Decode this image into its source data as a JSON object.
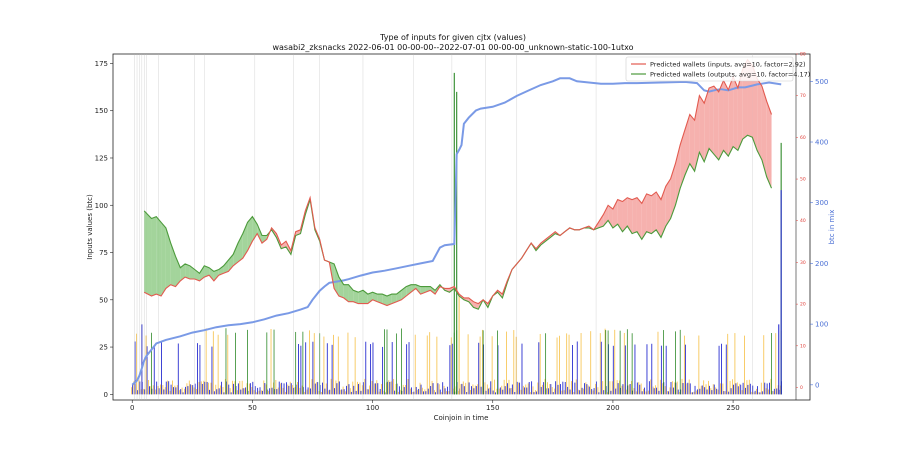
{
  "chart_data": {
    "type": "line",
    "title": "Type of inputs for given cjtx (values)",
    "subtitle": "wasabi2_zksnacks 2022-06-01 00-00-00--2022-07-01 00-00-00_unknown-static-100-1utxo",
    "xlabel": "Coinjoin in time",
    "ylabel": "Inputs values (btc)",
    "ylabel_right": "btc in mix",
    "xlim": [
      -8,
      282
    ],
    "ylim": [
      -3,
      180
    ],
    "xticks": [
      0,
      50,
      100,
      150,
      200,
      250
    ],
    "yticks": [
      0,
      25,
      50,
      75,
      100,
      125,
      150,
      175
    ],
    "y2lim": [
      -25,
      545
    ],
    "y2ticks": [
      0,
      100,
      200,
      300,
      400,
      500
    ],
    "y3lim": [
      -3,
      80
    ],
    "y3ticks": [
      0,
      10,
      20,
      30,
      40,
      50,
      60,
      70,
      80
    ],
    "grid": false,
    "legend_position": "top-right",
    "vertical_lines_x": [
      1,
      2,
      3,
      4,
      5,
      6,
      11,
      26,
      30,
      51,
      67,
      78,
      96,
      117,
      133,
      147,
      160,
      193,
      258
    ],
    "series": [
      {
        "name": "Predicted wallets (inputs, avg=10, factor=2.92)",
        "color": "#e25a4f",
        "x": [
          5,
          8,
          10,
          12,
          14,
          16,
          18,
          20,
          22,
          24,
          26,
          28,
          30,
          32,
          34,
          36,
          38,
          40,
          42,
          44,
          46,
          48,
          50,
          52,
          54,
          56,
          58,
          60,
          62,
          64,
          66,
          68,
          70,
          72,
          74,
          76,
          78,
          80,
          82,
          84,
          86,
          88,
          90,
          92,
          94,
          96,
          98,
          100,
          102,
          104,
          106,
          108,
          110,
          112,
          114,
          116,
          118,
          120,
          122,
          124,
          126,
          128,
          130,
          132,
          134,
          136,
          138,
          140,
          142,
          144,
          146,
          148,
          150,
          152,
          154,
          156,
          158,
          160,
          162,
          164,
          166,
          168,
          170,
          172,
          174,
          176,
          178,
          180,
          182,
          184,
          186,
          188,
          190,
          192,
          194,
          196,
          198,
          200,
          202,
          204,
          206,
          208,
          210,
          212,
          214,
          216,
          218,
          220,
          222,
          224,
          226,
          228,
          230,
          232,
          234,
          236,
          238,
          240,
          242,
          244,
          246,
          248,
          250,
          252,
          254,
          256,
          258,
          260,
          262,
          264,
          266
        ],
        "values": [
          54,
          52,
          53,
          52,
          56,
          58,
          57,
          60,
          62,
          61,
          61,
          60,
          62,
          63,
          60,
          63,
          64,
          65,
          68,
          70,
          72,
          76,
          81,
          85,
          80,
          82,
          88,
          85,
          79,
          81,
          76,
          86,
          87,
          97,
          104,
          88,
          82,
          71,
          70,
          56,
          52,
          51,
          49,
          49,
          48,
          48,
          48,
          50,
          49,
          48,
          47,
          48,
          49,
          50,
          52,
          54,
          56,
          53,
          54,
          55,
          53,
          57,
          56,
          56,
          57,
          53,
          51,
          51,
          49,
          48,
          50,
          48,
          52,
          55,
          53,
          60,
          66,
          69,
          72,
          76,
          80,
          77,
          80,
          82,
          84,
          86,
          84,
          86,
          88,
          87,
          87,
          88,
          89,
          87,
          91,
          95,
          100,
          98,
          103,
          102,
          104,
          103,
          104,
          101,
          106,
          105,
          107,
          103,
          110,
          114,
          122,
          132,
          140,
          148,
          145,
          158,
          154,
          162,
          163,
          160,
          166,
          161,
          168,
          162,
          172,
          177,
          174,
          167,
          163,
          155,
          148
        ]
      },
      {
        "name": "Predicted wallets (outputs, avg=10, factor=4.17)",
        "color": "#4c9a3b",
        "x": [
          5,
          8,
          10,
          12,
          14,
          16,
          18,
          20,
          22,
          24,
          26,
          28,
          30,
          32,
          34,
          36,
          38,
          40,
          42,
          44,
          46,
          48,
          50,
          52,
          54,
          56,
          58,
          60,
          62,
          64,
          66,
          68,
          70,
          72,
          74,
          76,
          78,
          80,
          82,
          84,
          86,
          88,
          90,
          92,
          94,
          96,
          98,
          100,
          102,
          104,
          106,
          108,
          110,
          112,
          114,
          116,
          118,
          120,
          122,
          124,
          126,
          128,
          130,
          132,
          134,
          136,
          138,
          140,
          142,
          144,
          146,
          148,
          150,
          152,
          154,
          156,
          158,
          160,
          162,
          164,
          166,
          168,
          170,
          172,
          174,
          176,
          178,
          180,
          182,
          184,
          186,
          188,
          190,
          192,
          194,
          196,
          198,
          200,
          202,
          204,
          206,
          208,
          210,
          212,
          214,
          216,
          218,
          220,
          222,
          224,
          226,
          228,
          230,
          232,
          234,
          236,
          238,
          240,
          242,
          244,
          246,
          248,
          250,
          252,
          254,
          256,
          258,
          260,
          262,
          264,
          266
        ],
        "values": [
          97,
          93,
          94,
          91,
          88,
          80,
          73,
          67,
          69,
          68,
          66,
          64,
          68,
          67,
          65,
          66,
          68,
          71,
          74,
          80,
          85,
          91,
          94,
          90,
          84,
          84,
          87,
          83,
          77,
          78,
          74,
          84,
          85,
          95,
          103,
          87,
          81,
          71,
          70,
          69,
          62,
          58,
          58,
          55,
          54,
          55,
          53,
          54,
          53,
          53,
          52,
          53,
          53,
          55,
          57,
          58,
          58,
          57,
          57,
          57,
          55,
          58,
          55,
          54,
          56,
          52,
          50,
          49,
          46,
          45,
          50,
          46,
          52,
          54,
          51,
          59,
          66,
          69,
          72,
          76,
          80,
          76,
          79,
          81,
          83,
          85,
          84,
          86,
          88,
          87,
          87,
          88,
          88,
          87,
          88,
          89,
          92,
          88,
          90,
          86,
          89,
          85,
          86,
          82,
          86,
          85,
          87,
          83,
          89,
          93,
          100,
          109,
          116,
          122,
          118,
          128,
          123,
          130,
          127,
          124,
          129,
          126,
          131,
          129,
          135,
          137,
          136,
          129,
          124,
          115,
          109
        ]
      },
      {
        "name": "btc in mix",
        "color": "#7a9ae6",
        "axis": "right",
        "x": [
          0,
          2,
          3,
          4,
          5,
          6,
          8,
          10,
          14,
          20,
          25,
          30,
          35,
          40,
          45,
          50,
          55,
          60,
          65,
          70,
          73,
          75,
          78,
          80,
          82,
          85,
          88,
          90,
          95,
          100,
          105,
          110,
          115,
          120,
          125,
          128,
          130,
          134,
          135,
          136,
          137,
          138,
          140,
          143,
          145,
          150,
          155,
          160,
          165,
          170,
          175,
          178,
          182,
          185,
          190,
          195,
          200,
          205,
          210,
          220,
          230,
          235,
          238,
          240,
          243,
          245,
          248,
          252,
          255,
          258,
          260,
          265,
          270
        ],
        "values": [
          0,
          7,
          15,
          27,
          40,
          48,
          58,
          68,
          74,
          80,
          86,
          90,
          95,
          98,
          100,
          103,
          108,
          114,
          118,
          124,
          128,
          140,
          155,
          162,
          168,
          170,
          172,
          174,
          180,
          185,
          188,
          192,
          196,
          200,
          204,
          226,
          230,
          232,
          380,
          387,
          395,
          430,
          440,
          452,
          455,
          458,
          465,
          476,
          485,
          494,
          500,
          505,
          505,
          500,
          498,
          496,
          496,
          497,
          497,
          498,
          499,
          497,
          485,
          483,
          486,
          487,
          485,
          490,
          490,
          493,
          495,
          498,
          495
        ]
      }
    ],
    "bars_note": "per-coinjoin input values (blue), output values (yellow), special outputs (green) near the x axis"
  },
  "legend": {
    "inputs_label": "Predicted wallets (inputs, avg=10, factor=2.92)",
    "outputs_label": "Predicted wallets (outputs, avg=10, factor=4.17)"
  },
  "colors": {
    "inputs_line": "#e25a4f",
    "inputs_fill": "#f5a3a0",
    "outputs_line": "#4c9a3b",
    "outputs_fill": "#93cc8a",
    "mix_line": "#7a9ae6",
    "bar_blue": "#2a2fd0",
    "bar_yellow": "#f7c75a",
    "bar_green": "#2f8a2a",
    "right_axis_red": "#e0403a",
    "right_axis_blue": "#4a6fd4"
  }
}
